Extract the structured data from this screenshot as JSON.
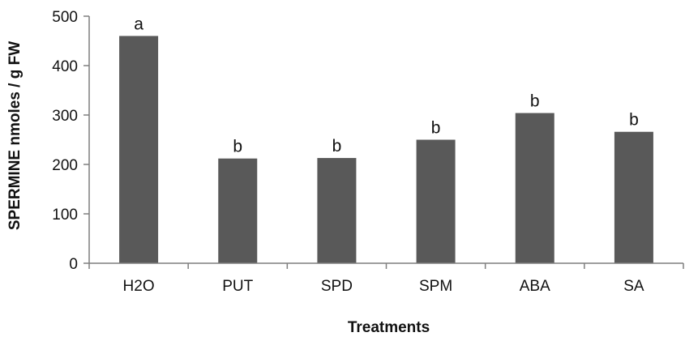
{
  "chart_data": {
    "type": "bar",
    "title": "",
    "xlabel": "Treatments",
    "ylabel": "SPERMINE nmoles / g FW",
    "categories": [
      "H2O",
      "PUT",
      "SPD",
      "SPM",
      "ABA",
      "SA"
    ],
    "values": [
      460,
      212,
      213,
      250,
      304,
      266
    ],
    "significance_labels": [
      "a",
      "b",
      "b",
      "b",
      "b",
      "b"
    ],
    "ylim": [
      0,
      500
    ],
    "yticks": [
      "0",
      "100",
      "200",
      "300",
      "400",
      "500"
    ],
    "grid": false,
    "bar_color": "#595959",
    "axis_color": "#7f7f7f"
  }
}
